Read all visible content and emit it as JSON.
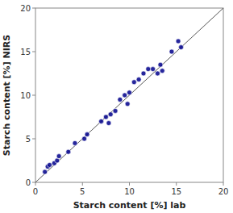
{
  "chart_data": {
    "type": "scatter",
    "xlabel": "Starch content [%] lab",
    "ylabel": "Starch content [%] NIRS",
    "x": [
      1.0,
      1.3,
      1.5,
      2.0,
      2.3,
      2.5,
      3.5,
      4.2,
      5.2,
      5.5,
      7.0,
      7.5,
      7.8,
      8.0,
      8.5,
      9.0,
      9.5,
      9.8,
      10.0,
      10.5,
      11.0,
      11.5,
      12.0,
      12.5,
      13.0,
      13.3,
      13.5,
      14.5,
      15.2,
      15.5
    ],
    "values": [
      1.2,
      1.8,
      2.0,
      2.2,
      2.5,
      3.0,
      3.5,
      4.5,
      5.0,
      5.5,
      7.0,
      7.5,
      6.8,
      7.8,
      8.2,
      9.5,
      10.0,
      9.0,
      10.3,
      11.5,
      11.8,
      12.5,
      13.0,
      13.0,
      12.5,
      13.5,
      12.8,
      15.0,
      16.2,
      15.5
    ],
    "color": "#00008B",
    "xlim": [
      0,
      20
    ],
    "ylim": [
      0,
      20
    ],
    "xticks": [
      0,
      5,
      10,
      15,
      20
    ],
    "yticks": [
      0,
      5,
      10,
      15,
      20
    ],
    "grid": false
  }
}
